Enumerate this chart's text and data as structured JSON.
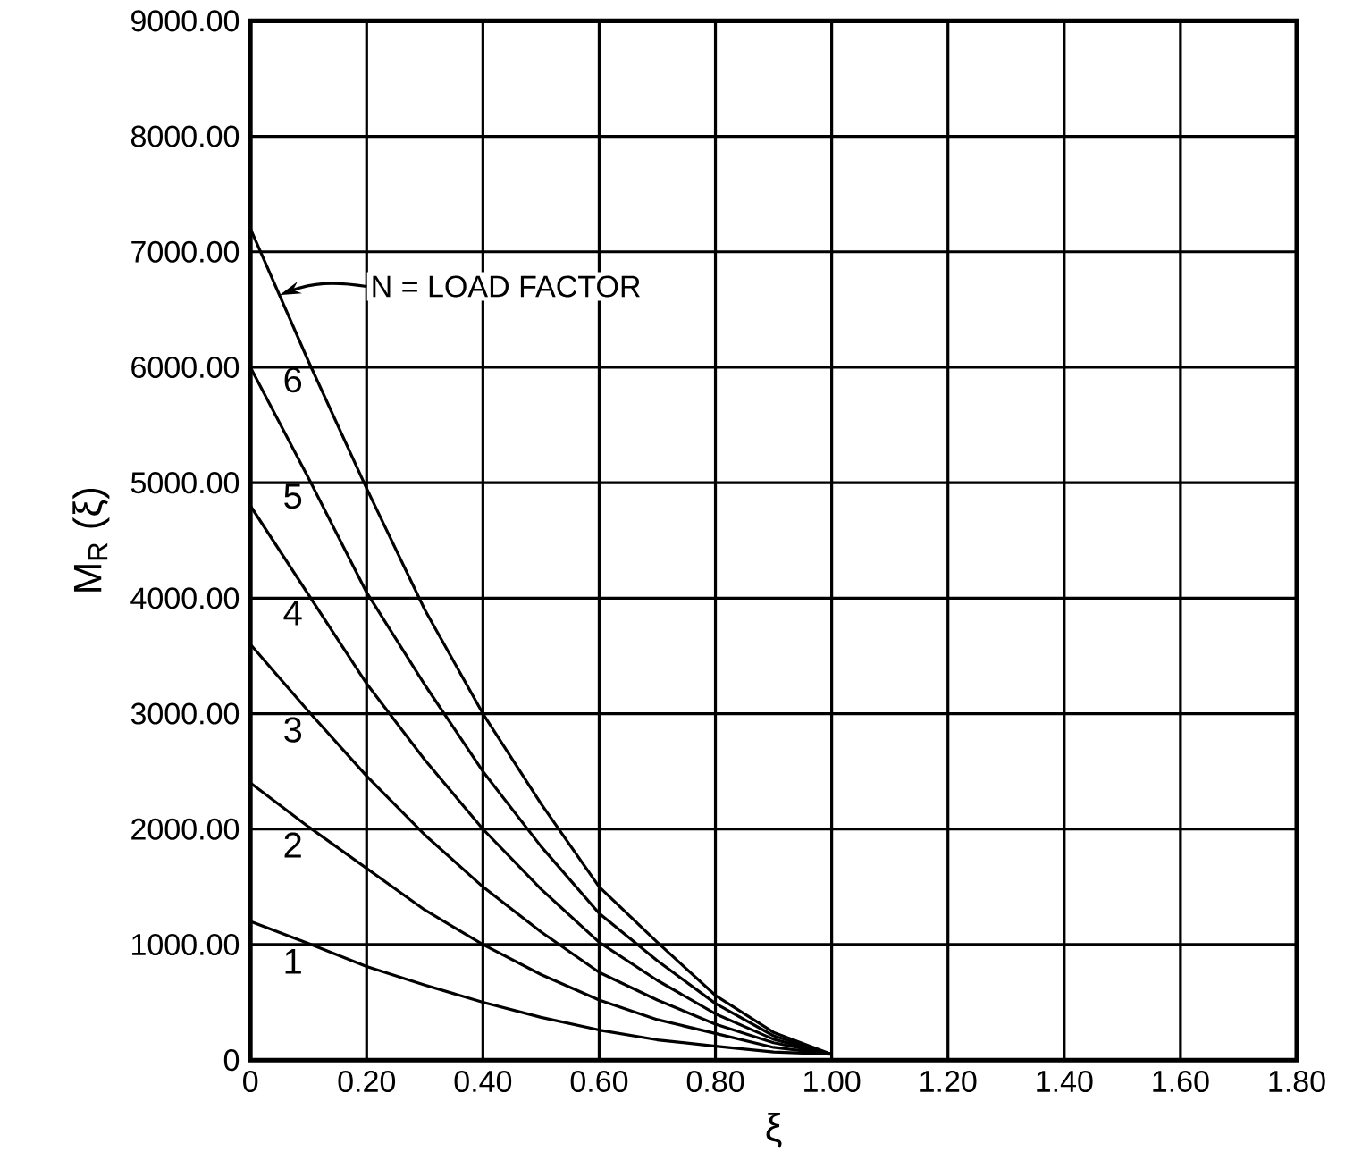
{
  "chart_data": {
    "type": "line",
    "xlabel": "ξ",
    "ylabel": "M$_{R}$ (ξ)",
    "x": [
      0,
      0.1,
      0.2,
      0.3,
      0.4,
      0.5,
      0.6,
      0.7,
      0.8,
      0.9,
      1.0
    ],
    "series": [
      {
        "name": "1",
        "color": "#000000",
        "values": [
          1200,
          1010,
          810,
          650,
          500,
          370,
          260,
          175,
          120,
          70,
          50
        ]
      },
      {
        "name": "2",
        "color": "#000000",
        "values": [
          2400,
          2020,
          1660,
          1300,
          1000,
          740,
          520,
          350,
          230,
          110,
          50
        ]
      },
      {
        "name": "3",
        "color": "#000000",
        "values": [
          3600,
          3020,
          2460,
          1950,
          1500,
          1110,
          760,
          520,
          310,
          150,
          50
        ]
      },
      {
        "name": "4",
        "color": "#000000",
        "values": [
          4800,
          4030,
          3260,
          2600,
          2000,
          1480,
          1020,
          690,
          400,
          180,
          50
        ]
      },
      {
        "name": "5",
        "color": "#000000",
        "values": [
          6000,
          5040,
          4050,
          3250,
          2500,
          1850,
          1270,
          860,
          490,
          210,
          50
        ]
      },
      {
        "name": "6",
        "color": "#000000",
        "values": [
          7200,
          6050,
          4950,
          3900,
          3000,
          2220,
          1500,
          1020,
          560,
          240,
          50
        ]
      }
    ],
    "annotations": [
      "N = LOAD FACTOR"
    ],
    "xlim": [
      0,
      1.8
    ],
    "xticks": [
      {
        "value": 0,
        "label": "0"
      },
      {
        "value": 0.2,
        "label": "0.20"
      },
      {
        "value": 0.4,
        "label": "0.40"
      },
      {
        "value": 0.6,
        "label": "0.60"
      },
      {
        "value": 0.8,
        "label": "0.80"
      },
      {
        "value": 1.0,
        "label": "1.00"
      },
      {
        "value": 1.2,
        "label": "1.20"
      },
      {
        "value": 1.4,
        "label": "1.40"
      },
      {
        "value": 1.6,
        "label": "1.60"
      },
      {
        "value": 1.8,
        "label": "1.80"
      }
    ],
    "ylim": [
      0,
      9000
    ],
    "yticks": [
      {
        "value": 0,
        "label": "0"
      },
      {
        "value": 1000,
        "label": "1000.00"
      },
      {
        "value": 2000,
        "label": "2000.00"
      },
      {
        "value": 3000,
        "label": "3000.00"
      },
      {
        "value": 4000,
        "label": "4000.00"
      },
      {
        "value": 5000,
        "label": "5000.00"
      },
      {
        "value": 6000,
        "label": "6000.00"
      },
      {
        "value": 7000,
        "label": "7000.00"
      },
      {
        "value": 8000,
        "label": "8000.00"
      },
      {
        "value": 9000,
        "label": "9000.00"
      }
    ],
    "grid": true,
    "marker": "none",
    "line_style": "solid"
  }
}
